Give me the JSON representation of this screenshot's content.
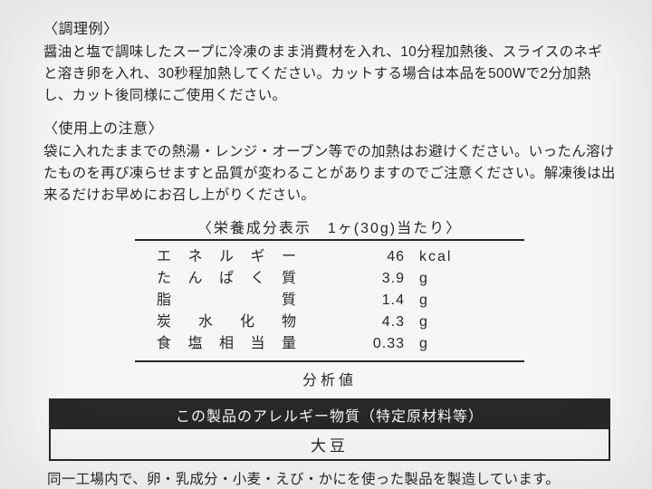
{
  "cooking": {
    "title": "〈調理例〉",
    "text": "醤油と塩で調味したスープに冷凍のまま消費材を入れ、10分程加熱後、スライスのネギと溶き卵を入れ、30秒程加熱してください。カットする場合は本品を500Wで2分加熱し、カット後同様にご使用ください。"
  },
  "caution": {
    "title": "〈使用上の注意〉",
    "text": "袋に入れたままでの熱湯・レンジ・オーブン等での加熱はお避けください。いったん溶けたものを再び凍らせますと品質が変わることがありますのでご注意ください。解凍後は出来るだけお早めにお召し上がりください。"
  },
  "nutrition": {
    "header": "〈栄養成分表示　1ヶ(30g)当たり〉",
    "rows": [
      {
        "label": "エネルギー",
        "value": "46",
        "unit": "kcal"
      },
      {
        "label": "たんぱく質",
        "value": "3.9",
        "unit": "g"
      },
      {
        "label": "脂　　　質",
        "value": "1.4",
        "unit": "g"
      },
      {
        "label": "炭 水 化 物",
        "value": "4.3",
        "unit": "g"
      },
      {
        "label": "食塩相当量",
        "value": "0.33",
        "unit": "g"
      }
    ],
    "note": "分析値"
  },
  "allergy": {
    "header": "この製品のアレルギー物質（特定原材料等）",
    "body": "大豆"
  },
  "factory": "同一工場内で、卵・乳成分・小麦・えび・かにを使った製品を製造しています。"
}
